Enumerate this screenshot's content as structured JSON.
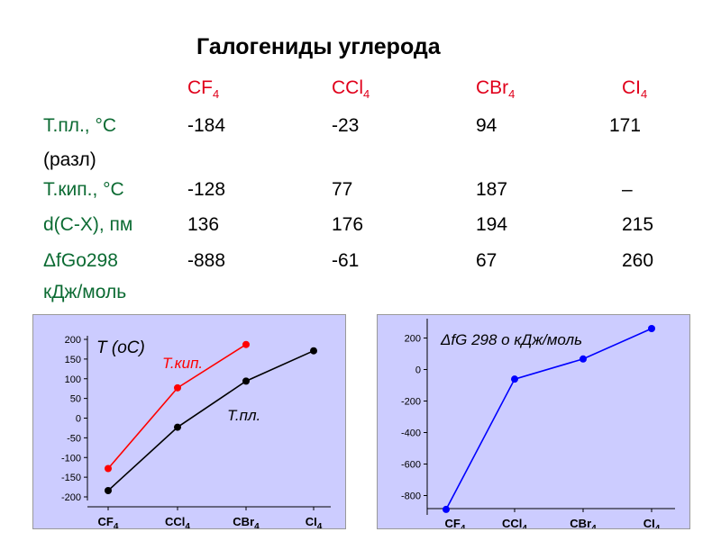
{
  "title": "Галогениды углерода",
  "compounds": [
    {
      "base": "CF",
      "sub": "4"
    },
    {
      "base": "CCl",
      "sub": "4"
    },
    {
      "base": "CBr",
      "sub": "4"
    },
    {
      "base": "CI",
      "sub": "4"
    }
  ],
  "rows": [
    {
      "label": "Т.пл., °С",
      "values": [
        "-184",
        "-23",
        "94",
        "171"
      ]
    },
    {
      "label": "(разл)",
      "values": []
    },
    {
      "label": "Т.кип., °С",
      "values": [
        "-128",
        "77",
        "187",
        "–"
      ]
    },
    {
      "label": "d(C-X), пм",
      "values": [
        "136",
        "176",
        "194",
        "215"
      ]
    },
    {
      "label": "ΔfGo298",
      "values": [
        "-888",
        "-61",
        "67",
        "260"
      ]
    },
    {
      "label": "кДж/моль",
      "values": []
    }
  ],
  "colors": {
    "title": "#000000",
    "header": "#e0001b",
    "row_label": "#0c6b33",
    "panel_bg": "#ccccff",
    "melting": "#000000",
    "boiling": "#ff0000",
    "gibbs": "#0000ff"
  },
  "chart_data": [
    {
      "type": "line",
      "categories": [
        "CF4",
        "CCl4",
        "CBr4",
        "CI4"
      ],
      "ylabel": "T (oC)",
      "ylim": [
        -200,
        200
      ],
      "yticks": [
        200,
        150,
        100,
        50,
        0,
        -50,
        -100,
        -150,
        -200
      ],
      "series": [
        {
          "name": "Т.кип.",
          "values": [
            -128,
            77,
            187,
            null
          ],
          "color": "#ff0000"
        },
        {
          "name": "Т.пл.",
          "values": [
            -184,
            -23,
            94,
            171
          ],
          "color": "#000000"
        }
      ]
    },
    {
      "type": "line",
      "categories": [
        "CF4",
        "CCl4",
        "CBr4",
        "CI4"
      ],
      "ylabel": "ΔfG 298 o кДж/моль",
      "ylim": [
        -900,
        300
      ],
      "yticks": [
        200,
        0,
        -200,
        -400,
        -600,
        -800
      ],
      "series": [
        {
          "name": "",
          "values": [
            -888,
            -61,
            67,
            260
          ],
          "color": "#0000ff"
        }
      ]
    }
  ]
}
